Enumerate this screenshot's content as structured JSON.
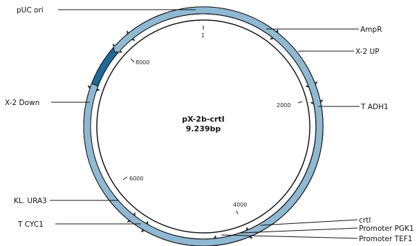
{
  "plasmid": {
    "name": "pX-2b-crtI",
    "size": "9.239bp"
  },
  "colors": {
    "dark_blue": "#1e6a98",
    "light_blue": "#8fb9d3",
    "yellow": "#c9cc1f",
    "green": "#5aa82d",
    "outline": "#111111"
  },
  "ticks": [
    {
      "label": "1"
    },
    {
      "label": "2000"
    },
    {
      "label": "4000"
    },
    {
      "label": "6000"
    },
    {
      "label": "8000"
    }
  ],
  "features": [
    {
      "name": "AmpR",
      "color": "dark_blue"
    },
    {
      "name": "pUC ori",
      "color": "yellow"
    },
    {
      "name": "X-2 UP",
      "color": "light_blue"
    },
    {
      "name": "T ADH1",
      "color": "yellow"
    },
    {
      "name": "crtI",
      "color": "dark_blue"
    },
    {
      "name": "Promoter PGK1",
      "color": "green"
    },
    {
      "name": "Promoter TEF1",
      "color": "green"
    },
    {
      "name": "T CYC1",
      "color": "yellow"
    },
    {
      "name": "KL. URA3",
      "color": "dark_blue"
    },
    {
      "name": "X-2 Down",
      "color": "light_blue"
    }
  ]
}
